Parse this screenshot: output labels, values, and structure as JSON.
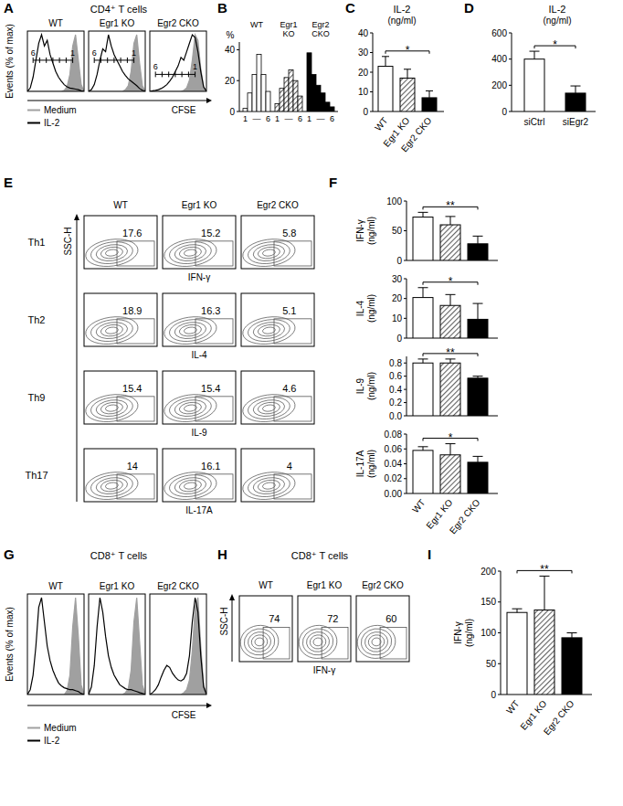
{
  "chart_data": [
    {
      "panel": "A",
      "type": "line",
      "title": "CD4⁺ T cells",
      "x_label": "CFSE",
      "y_label": "Events (% of max)",
      "tick_labels": false,
      "legend": "bottom-left",
      "gate_labels": [
        "6",
        "1"
      ],
      "xlim": [
        0,
        20
      ],
      "ylim": [
        0,
        100
      ],
      "x": [
        0,
        1,
        2,
        3,
        4,
        5,
        6,
        7,
        8,
        9,
        10,
        11,
        12,
        13,
        14,
        15,
        16,
        17,
        18,
        19,
        20
      ],
      "series": [
        {
          "name": "Medium",
          "color": "#a0a0a0",
          "type": "area"
        },
        {
          "name": "IL-2",
          "color": "#000000",
          "type": "line"
        }
      ],
      "subplots": [
        {
          "title": "WT",
          "gate": {
            "x": [
              2,
              16
            ],
            "y": 55
          },
          "values": [
            [
              0,
              0,
              0,
              0,
              0,
              0,
              0,
              0,
              0,
              0,
              0,
              0,
              0,
              2,
              8,
              30,
              80,
              100,
              55,
              12,
              0
            ],
            [
              0,
              6,
              25,
              55,
              85,
              100,
              80,
              90,
              65,
              50,
              35,
              25,
              18,
              12,
              8,
              6,
              5,
              4,
              3,
              1,
              0
            ]
          ]
        },
        {
          "title": "Egr1 KO",
          "gate": {
            "x": [
              2,
              16
            ],
            "y": 55
          },
          "values": [
            [
              0,
              0,
              0,
              0,
              0,
              0,
              0,
              0,
              0,
              0,
              0,
              0,
              0,
              3,
              10,
              35,
              85,
              100,
              50,
              10,
              0
            ],
            [
              0,
              3,
              12,
              30,
              55,
              75,
              70,
              100,
              80,
              65,
              55,
              45,
              35,
              28,
              22,
              18,
              14,
              10,
              5,
              2,
              0
            ]
          ]
        },
        {
          "title": "Egr2 CKO",
          "gate": {
            "x": [
              2,
              16
            ],
            "y": 30
          },
          "values": [
            [
              0,
              0,
              0,
              0,
              0,
              0,
              0,
              0,
              0,
              0,
              0,
              0,
              2,
              6,
              20,
              55,
              100,
              90,
              40,
              8,
              0
            ],
            [
              0,
              1,
              2,
              3,
              5,
              8,
              12,
              18,
              25,
              35,
              45,
              60,
              55,
              70,
              85,
              100,
              95,
              70,
              35,
              8,
              0
            ]
          ]
        }
      ]
    },
    {
      "panel": "B",
      "type": "bar",
      "y_label": "%",
      "ylim": [
        0,
        45
      ],
      "yticks": [
        0,
        20,
        40
      ],
      "categories": [
        "1",
        null,
        null,
        null,
        null,
        "6"
      ],
      "category_separator": "—",
      "series": [
        {
          "name": "WT",
          "color": "#ffffff",
          "values": [
            2,
            12,
            24,
            37,
            24,
            13
          ]
        },
        {
          "name": "Egr1 KO",
          "color": "#606060",
          "values": [
            5,
            15,
            22,
            27,
            20,
            10
          ]
        },
        {
          "name": "Egr2 CKO",
          "color": "#000000",
          "values": [
            38,
            24,
            17,
            12,
            6,
            3
          ]
        }
      ]
    },
    {
      "panel": "C",
      "type": "bar",
      "title": "IL-2",
      "subtitle": "(ng/ml)",
      "categories": [
        "WT",
        "Egr1 KO",
        "Egr2 CKO"
      ],
      "values": [
        23,
        17,
        7
      ],
      "errors": [
        5,
        4.5,
        3.5
      ],
      "colors": [
        "#ffffff",
        "#606060",
        "#000000"
      ],
      "ylim": [
        0,
        40
      ],
      "yticks": [
        0,
        10,
        20,
        30,
        40
      ],
      "significance": [
        {
          "from": 0,
          "to": 2,
          "label": "*"
        }
      ]
    },
    {
      "panel": "D",
      "type": "bar",
      "title": "IL-2",
      "subtitle": "(ng/ml)",
      "categories": [
        "siCtrl",
        "siEgr2"
      ],
      "values": [
        400,
        140
      ],
      "errors": [
        60,
        55
      ],
      "colors": [
        "#ffffff",
        "#000000"
      ],
      "ylim": [
        0,
        600
      ],
      "yticks": [
        0,
        200,
        400,
        600
      ],
      "significance": [
        {
          "from": 0,
          "to": 1,
          "label": "*"
        }
      ]
    },
    {
      "panel": "E",
      "type": "density",
      "y_label": "SSC-H",
      "columns": [
        "WT",
        "Egr1 KO",
        "Egr2 CKO"
      ],
      "data_labels": true,
      "tick_labels": false,
      "rows": [
        {
          "name": "Th1",
          "x_label": "IFN-γ",
          "values": [
            17.6,
            15.2,
            5.8
          ]
        },
        {
          "name": "Th2",
          "x_label": "IL-4",
          "values": [
            18.9,
            16.3,
            5.1
          ]
        },
        {
          "name": "Th9",
          "x_label": "IL-9",
          "values": [
            15.4,
            15.4,
            4.6
          ]
        },
        {
          "name": "Th17",
          "x_label": "IL-17A",
          "values": [
            14,
            16.1,
            4
          ]
        }
      ]
    },
    {
      "panel": "F",
      "type": "bar",
      "categories": [
        "WT",
        "Egr1 KO",
        "Egr2 CKO"
      ],
      "colors": [
        "#ffffff",
        "#606060",
        "#000000"
      ],
      "subplots": [
        {
          "y_label": "IFN-γ",
          "y_unit": "(ng/ml)",
          "values": [
            73,
            60,
            28
          ],
          "errors": [
            8,
            14,
            13
          ],
          "ylim": [
            0,
            100
          ],
          "yticks": [
            0,
            50,
            100
          ],
          "significance": [
            {
              "from": 0,
              "to": 2,
              "label": "**"
            }
          ]
        },
        {
          "y_label": "IL-4",
          "y_unit": "(ng/ml)",
          "values": [
            20.5,
            16.5,
            9.5
          ],
          "errors": [
            5,
            5.5,
            8
          ],
          "ylim": [
            0,
            30
          ],
          "yticks": [
            0,
            10,
            20,
            30
          ],
          "significance": [
            {
              "from": 0,
              "to": 2,
              "label": "*"
            }
          ]
        },
        {
          "y_label": "IL-9",
          "y_unit": "(ng/ml)",
          "values": [
            0.8,
            0.8,
            0.57
          ],
          "errors": [
            0.06,
            0.06,
            0.03
          ],
          "ylim": [
            0,
            0.9
          ],
          "yticks": [
            {
              "value": 0,
              "label": "0.0"
            },
            0.2,
            0.4,
            0.6,
            0.8
          ],
          "significance": [
            {
              "from": 0,
              "to": 2,
              "label": "**"
            }
          ]
        },
        {
          "y_label": "IL-17A",
          "y_unit": "(ng/ml)",
          "values": [
            0.058,
            0.052,
            0.042
          ],
          "errors": [
            0.005,
            0.015,
            0.008
          ],
          "ylim": [
            0,
            0.08
          ],
          "yticks": [
            {
              "value": 0,
              "label": "0.00"
            },
            0.02,
            0.04,
            0.06,
            0.08
          ],
          "significance": [
            {
              "from": 0,
              "to": 2,
              "label": "*"
            }
          ]
        }
      ]
    },
    {
      "panel": "G",
      "type": "line",
      "title": "CD8⁺ T cells",
      "x_label": "CFSE",
      "y_label": "Events (% of max)",
      "tick_labels": false,
      "legend": "bottom-left",
      "xlim": [
        0,
        20
      ],
      "ylim": [
        0,
        100
      ],
      "x": [
        0,
        1,
        2,
        3,
        4,
        5,
        6,
        7,
        8,
        9,
        10,
        11,
        12,
        13,
        14,
        15,
        16,
        17,
        18,
        19,
        20
      ],
      "series": [
        {
          "name": "Medium",
          "color": "#a0a0a0",
          "type": "area"
        },
        {
          "name": "IL-2",
          "color": "#000000",
          "type": "line"
        }
      ],
      "subplots": [
        {
          "title": "WT",
          "values": [
            [
              0,
              0,
              0,
              0,
              0,
              0,
              0,
              0,
              0,
              0,
              0,
              0,
              0,
              0,
              4,
              20,
              70,
              100,
              60,
              10,
              0
            ],
            [
              0,
              5,
              20,
              50,
              90,
              100,
              75,
              50,
              35,
              25,
              18,
              12,
              9,
              7,
              6,
              5,
              5,
              4,
              3,
              1,
              0
            ]
          ]
        },
        {
          "title": "Egr1 KO",
          "values": [
            [
              0,
              0,
              0,
              0,
              0,
              0,
              0,
              0,
              0,
              0,
              0,
              0,
              0,
              2,
              6,
              25,
              75,
              100,
              55,
              10,
              0
            ],
            [
              0,
              8,
              30,
              70,
              100,
              85,
              60,
              40,
              28,
              20,
              15,
              10,
              8,
              6,
              5,
              5,
              4,
              3,
              2,
              1,
              0
            ]
          ]
        },
        {
          "title": "Egr2 CKO",
          "values": [
            [
              0,
              0,
              0,
              0,
              0,
              0,
              0,
              0,
              0,
              0,
              0,
              0,
              2,
              5,
              15,
              45,
              90,
              100,
              50,
              10,
              0
            ],
            [
              0,
              2,
              5,
              10,
              18,
              25,
              30,
              28,
              22,
              18,
              15,
              14,
              16,
              22,
              40,
              75,
              100,
              85,
              40,
              8,
              0
            ]
          ]
        }
      ]
    },
    {
      "panel": "H",
      "type": "density",
      "title": "CD8⁺ T cells",
      "y_label": "SSC-H",
      "columns": [
        "WT",
        "Egr1 KO",
        "Egr2 CKO"
      ],
      "data_labels": true,
      "tick_labels": false,
      "rows": [
        {
          "x_label": "IFN-γ",
          "values": [
            74,
            72,
            60
          ]
        }
      ]
    },
    {
      "panel": "I",
      "type": "bar",
      "y_label": "IFN-γ",
      "y_unit": "(ng/ml)",
      "categories": [
        "WT",
        "Egr1 KO",
        "Egr2 CKO"
      ],
      "values": [
        133,
        137,
        92
      ],
      "errors": [
        6,
        55,
        8
      ],
      "colors": [
        "#ffffff",
        "#606060",
        "#000000"
      ],
      "ylim": [
        0,
        200
      ],
      "yticks": [
        0,
        50,
        100,
        150,
        200
      ],
      "significance": [
        {
          "from": 0,
          "to": 2,
          "label": "**"
        }
      ]
    }
  ]
}
